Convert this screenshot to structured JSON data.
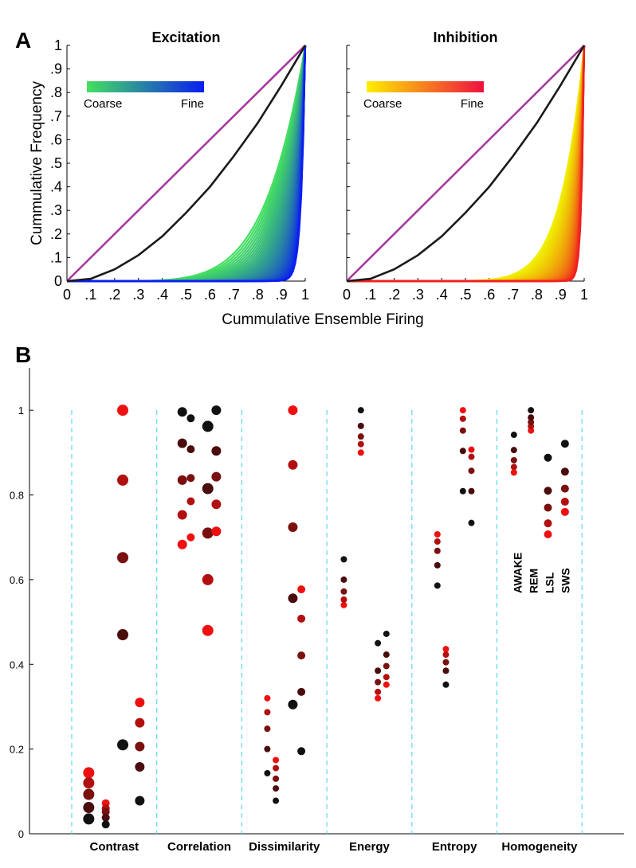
{
  "chart_data": [
    {
      "panel": "A",
      "type": "line",
      "title": "Excitation",
      "xlabel": "Cummulative Ensemble Firing",
      "ylabel": "Cummulative Frequency",
      "xlim": [
        0,
        1
      ],
      "ylim": [
        0,
        1
      ],
      "x_ticks": [
        "0",
        ".1",
        ".2",
        ".3",
        ".4",
        ".5",
        ".6",
        ".7",
        ".8",
        ".9",
        "1"
      ],
      "y_ticks": [
        "0",
        ".1",
        ".2",
        ".3",
        ".4",
        ".5",
        ".6",
        ".7",
        ".8",
        ".9",
        "1"
      ],
      "colorbar": {
        "colors": [
          "#44e060",
          "#0a1ef0"
        ],
        "labels": [
          "Coarse",
          "Fine"
        ]
      },
      "reference_lines": [
        {
          "color": "#a53a9e",
          "x": [
            0,
            1
          ],
          "y": [
            0,
            1
          ]
        },
        {
          "color": "#1a1a1a",
          "x": [
            0,
            0.1,
            0.2,
            0.3,
            0.4,
            0.5,
            0.6,
            0.7,
            0.8,
            0.9,
            1
          ],
          "y": [
            0,
            0.01,
            0.05,
            0.11,
            0.19,
            0.29,
            0.4,
            0.53,
            0.67,
            0.83,
            1
          ]
        }
      ],
      "curve_family": {
        "count": 44,
        "exponent_range": [
          6,
          60
        ],
        "color_from": "#44e060",
        "color_to": "#0a1ef0"
      }
    },
    {
      "panel": "",
      "type": "line",
      "title": "Inhibition",
      "xlim": [
        0,
        1
      ],
      "ylim": [
        0,
        1
      ],
      "x_ticks": [
        "0",
        ".1",
        ".2",
        ".3",
        ".4",
        ".5",
        ".6",
        ".7",
        ".8",
        ".9",
        "1"
      ],
      "colorbar": {
        "colors": [
          "#ffee00",
          "#ee1040"
        ],
        "labels": [
          "Coarse",
          "Fine"
        ]
      },
      "reference_lines": [
        {
          "color": "#a53a9e",
          "x": [
            0,
            1
          ],
          "y": [
            0,
            1
          ]
        },
        {
          "color": "#1a1a1a",
          "x": [
            0,
            0.1,
            0.2,
            0.3,
            0.4,
            0.5,
            0.6,
            0.7,
            0.8,
            0.9,
            1
          ],
          "y": [
            0,
            0.01,
            0.05,
            0.11,
            0.19,
            0.29,
            0.4,
            0.53,
            0.67,
            0.83,
            1
          ]
        }
      ],
      "curve_family": {
        "count": 44,
        "exponent_range": [
          10,
          90
        ],
        "color_from": "#f0f000",
        "color_to": "#f02020"
      }
    },
    {
      "panel": "B",
      "type": "scatter",
      "ylim": [
        0,
        1.1
      ],
      "y_ticks": [
        "0",
        "0.2",
        "0.4",
        "0.6",
        "0.8",
        "1"
      ],
      "categories": [
        "Contrast",
        "Correlation",
        "Dissimilarity",
        "Energy",
        "Entropy",
        "Homogeneity"
      ],
      "state_labels": [
        "AWAKE",
        "REM",
        "LSL",
        "SWS"
      ],
      "groups": [
        {
          "category": "Contrast",
          "x": 0.2,
          "size": 7,
          "values": [
            0.144,
            0.12,
            0.093,
            0.062,
            0.035
          ]
        },
        {
          "category": "Contrast",
          "x": 0.4,
          "size": 5,
          "values": [
            0.072,
            0.06,
            0.052,
            0.038,
            0.022
          ]
        },
        {
          "category": "Contrast",
          "x": 0.6,
          "size": 7,
          "values": [
            1.0,
            0.835,
            0.652,
            0.47,
            0.21
          ]
        },
        {
          "category": "Contrast",
          "x": 0.8,
          "size": 6,
          "values": [
            0.31,
            0.262,
            0.206,
            0.158,
            0.078
          ]
        },
        {
          "category": "Correlation",
          "x": 0.3,
          "size": 6,
          "values": [
            0.683,
            0.753,
            0.835,
            0.922,
            0.996
          ]
        },
        {
          "category": "Correlation",
          "x": 0.4,
          "size": 5,
          "values": [
            0.7,
            0.785,
            0.84,
            0.908,
            0.981
          ]
        },
        {
          "category": "Correlation",
          "x": 0.6,
          "size": 7,
          "values": [
            0.48,
            0.6,
            0.71,
            0.815,
            0.962
          ]
        },
        {
          "category": "Correlation",
          "x": 0.7,
          "size": 6,
          "values": [
            0.714,
            0.778,
            0.843,
            0.904,
            1.0
          ]
        },
        {
          "category": "Dissimilarity",
          "x": 0.3,
          "size": 4,
          "values": [
            0.32,
            0.287,
            0.248,
            0.2,
            0.143
          ]
        },
        {
          "category": "Dissimilarity",
          "x": 0.4,
          "size": 4,
          "values": [
            0.174,
            0.155,
            0.13,
            0.107,
            0.078
          ]
        },
        {
          "category": "Dissimilarity",
          "x": 0.6,
          "size": 6,
          "values": [
            1.0,
            0.871,
            0.724,
            0.556,
            0.305
          ]
        },
        {
          "category": "Dissimilarity",
          "x": 0.7,
          "size": 5,
          "values": [
            0.577,
            0.508,
            0.421,
            0.335,
            0.195
          ]
        },
        {
          "category": "Energy",
          "x": 0.2,
          "size": 4,
          "values": [
            0.54,
            0.553,
            0.572,
            0.6,
            0.648
          ]
        },
        {
          "category": "Energy",
          "x": 0.4,
          "size": 4,
          "values": [
            0.9,
            0.92,
            0.938,
            0.963,
            1.0
          ]
        },
        {
          "category": "Energy",
          "x": 0.6,
          "size": 4,
          "values": [
            0.32,
            0.335,
            0.358,
            0.385,
            0.45
          ]
        },
        {
          "category": "Energy",
          "x": 0.7,
          "size": 4,
          "values": [
            0.352,
            0.37,
            0.396,
            0.423,
            0.472
          ]
        },
        {
          "category": "Entropy",
          "x": 0.3,
          "size": 4,
          "values": [
            0.707,
            0.69,
            0.668,
            0.634,
            0.586
          ]
        },
        {
          "category": "Entropy",
          "x": 0.4,
          "size": 4,
          "values": [
            0.436,
            0.423,
            0.405,
            0.385,
            0.352
          ]
        },
        {
          "category": "Entropy",
          "x": 0.6,
          "size": 4,
          "values": [
            1.0,
            0.98,
            0.952,
            0.904,
            0.809
          ]
        },
        {
          "category": "Entropy",
          "x": 0.7,
          "size": 4,
          "values": [
            0.907,
            0.89,
            0.857,
            0.809,
            0.734
          ]
        },
        {
          "category": "Homogeneity",
          "x": 0.2,
          "size": 4,
          "values": [
            0.853,
            0.866,
            0.882,
            0.906,
            0.942
          ]
        },
        {
          "category": "Homogeneity",
          "x": 0.4,
          "size": 4,
          "values": [
            0.952,
            0.962,
            0.972,
            0.983,
            1.0
          ]
        },
        {
          "category": "Homogeneity",
          "x": 0.6,
          "size": 5,
          "values": [
            0.707,
            0.733,
            0.77,
            0.81,
            0.888
          ]
        },
        {
          "category": "Homogeneity",
          "x": 0.8,
          "size": 5,
          "values": [
            0.76,
            0.784,
            0.815,
            0.855,
            0.921
          ]
        }
      ],
      "point_colors": [
        "#ee1010",
        "#b21010",
        "#7a1010",
        "#4a0c0c",
        "#111111"
      ],
      "separator_color": "#5ed8f0"
    }
  ]
}
